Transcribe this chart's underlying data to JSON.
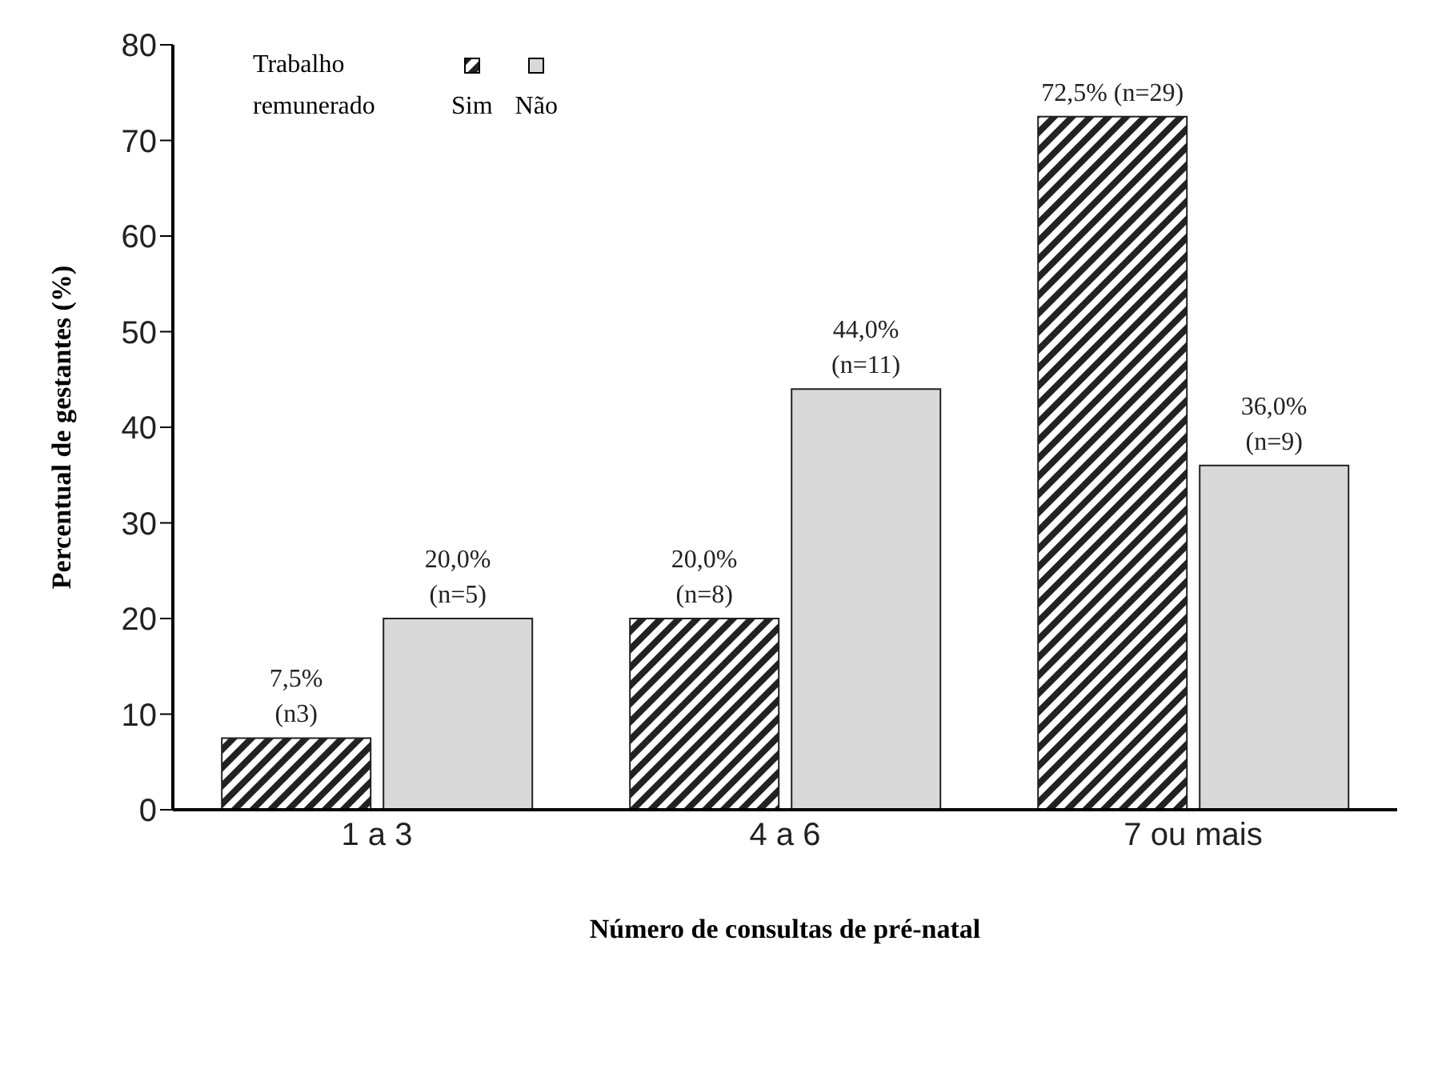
{
  "chart_data": {
    "type": "bar",
    "xlabel": "Número de consultas de pré-natal",
    "ylabel": "Percentual de gestantes (%)",
    "legend_title": "Trabalho remunerado",
    "categories": [
      "1 a 3",
      "4 a 6",
      "7 ou mais"
    ],
    "series": [
      {
        "name": "Sim",
        "color": "#222222",
        "values": [
          7.5,
          20.0,
          72.5
        ],
        "value_labels": [
          "7,5%\n(n3)",
          "20,0%\n(n=8)",
          "72,5% (n=29)"
        ]
      },
      {
        "name": "Não",
        "color": "#d9d9d9",
        "values": [
          20.0,
          44.0,
          36.0
        ],
        "value_labels": [
          "20,0%\n(n=5)",
          "44,0%\n(n=11)",
          "36,0%\n(n=9)"
        ]
      }
    ],
    "ylim": [
      0,
      80
    ],
    "yticks": [
      0,
      10,
      20,
      30,
      40,
      50,
      60,
      70,
      80
    ],
    "legend": "top left"
  }
}
